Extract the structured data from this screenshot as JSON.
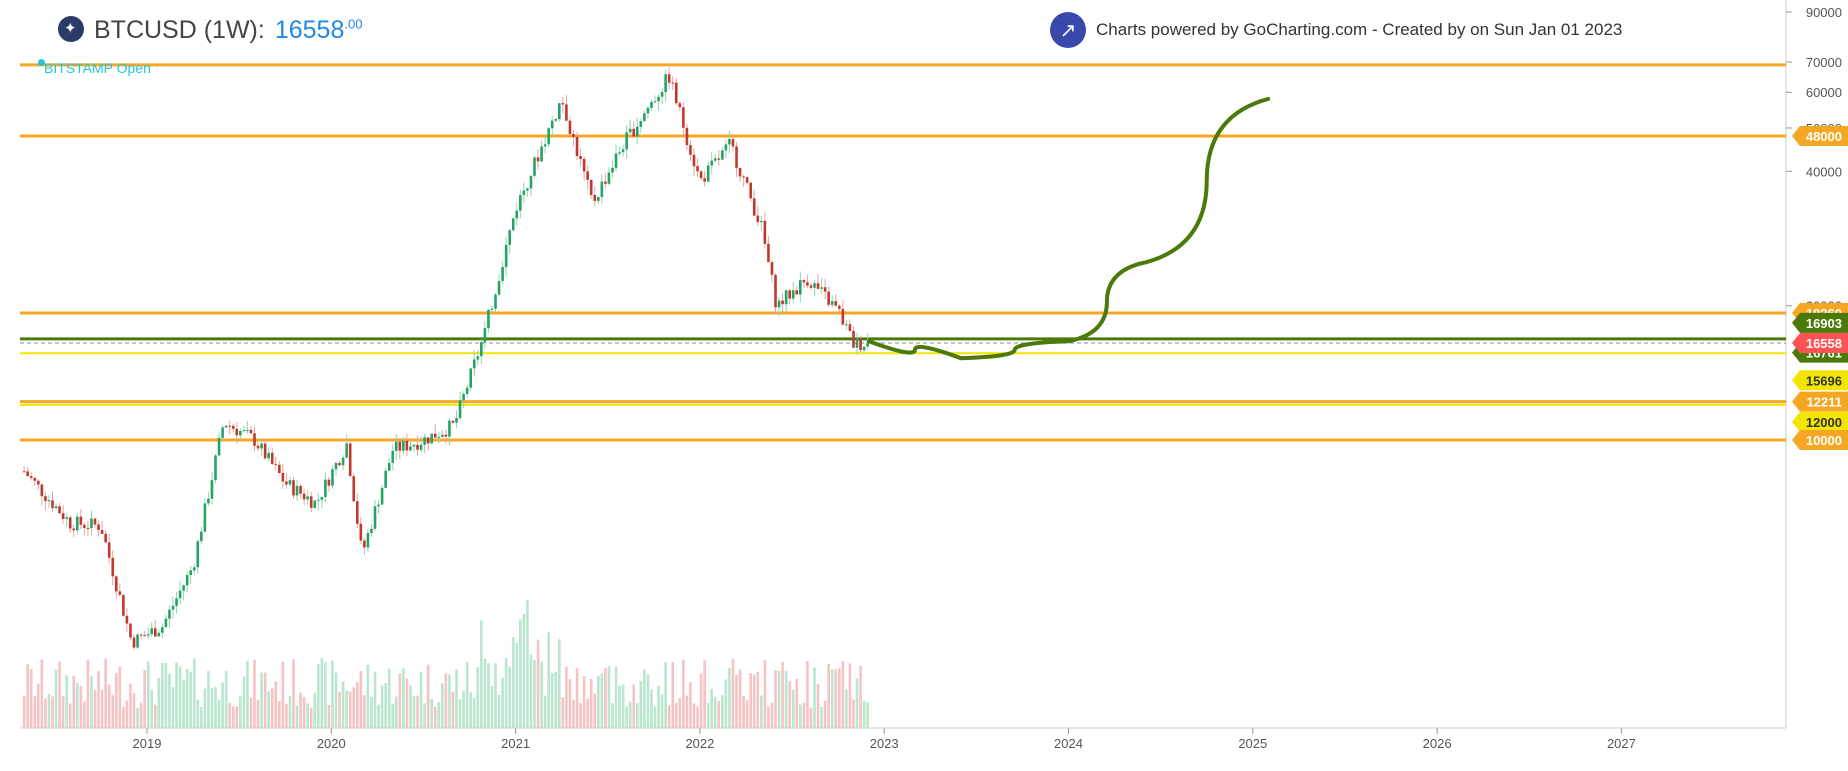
{
  "header": {
    "symbol": "BTCUSD (1W):",
    "price_int": "16558",
    "price_dec": ".00"
  },
  "credit": {
    "text": "Charts powered by GoCharting.com - Created by  on Sun Jan 01 2023",
    "icon": "trending-up-icon"
  },
  "source_label": "BITSTAMP Open",
  "colors": {
    "up": "#26a269",
    "down": "#c0392b",
    "orange": "#f5a623",
    "yellow": "#f2e600",
    "green": "#4c7a0a",
    "price": "#ff5252"
  },
  "chart_data": {
    "type": "candlestick",
    "x_ticks": [
      "2019",
      "2020",
      "2021",
      "2022",
      "2023",
      "2024",
      "2025",
      "2026",
      "2027"
    ],
    "y_ticks": [
      "90000",
      "70000",
      "60000",
      "50000",
      "40000",
      "20000"
    ],
    "horizontal_levels": [
      {
        "value": 69000,
        "color": "orange",
        "label": ""
      },
      {
        "value": 48000,
        "color": "orange",
        "label": "48000"
      },
      {
        "value": 19260,
        "color": "orange",
        "label": "19260"
      },
      {
        "value": 16903,
        "color": "green",
        "label": "16903"
      },
      {
        "value": 16761,
        "color": "green",
        "label": "16761"
      },
      {
        "value": 16558,
        "color": "price",
        "label": "16558"
      },
      {
        "value": 15696,
        "color": "yellow",
        "label": "15696"
      },
      {
        "value": 12211,
        "color": "orange",
        "label": "12211"
      },
      {
        "value": 12000,
        "color": "yellow",
        "label": "12000"
      },
      {
        "value": 10000,
        "color": "orange",
        "label": "10000"
      }
    ],
    "price_path": [
      [
        "2018-05",
        8500
      ],
      [
        "2018-08",
        6500
      ],
      [
        "2018-10",
        6400
      ],
      [
        "2018-12",
        3500
      ],
      [
        "2019-02",
        3800
      ],
      [
        "2019-04",
        5200
      ],
      [
        "2019-06",
        11000
      ],
      [
        "2019-08",
        10000
      ],
      [
        "2019-10",
        8000
      ],
      [
        "2019-12",
        7200
      ],
      [
        "2020-02",
        9800
      ],
      [
        "2020-03",
        5500
      ],
      [
        "2020-05",
        9500
      ],
      [
        "2020-07",
        10000
      ],
      [
        "2020-09",
        10800
      ],
      [
        "2020-11",
        17500
      ],
      [
        "2021-01",
        33000
      ],
      [
        "2021-04",
        58000
      ],
      [
        "2021-06",
        34000
      ],
      [
        "2021-08",
        46000
      ],
      [
        "2021-11",
        65000
      ],
      [
        "2022-01",
        38000
      ],
      [
        "2022-03",
        46000
      ],
      [
        "2022-05",
        30000
      ],
      [
        "2022-06",
        20000
      ],
      [
        "2022-08",
        23000
      ],
      [
        "2022-10",
        19500
      ],
      [
        "2022-11",
        16500
      ],
      [
        "2022-12",
        16558
      ]
    ],
    "projection": [
      [
        "2022-12",
        16700
      ],
      [
        "2023-06",
        15300
      ],
      [
        "2024-01",
        16700
      ],
      [
        "2024-06",
        25000
      ],
      [
        "2025-02",
        58000
      ]
    ]
  }
}
